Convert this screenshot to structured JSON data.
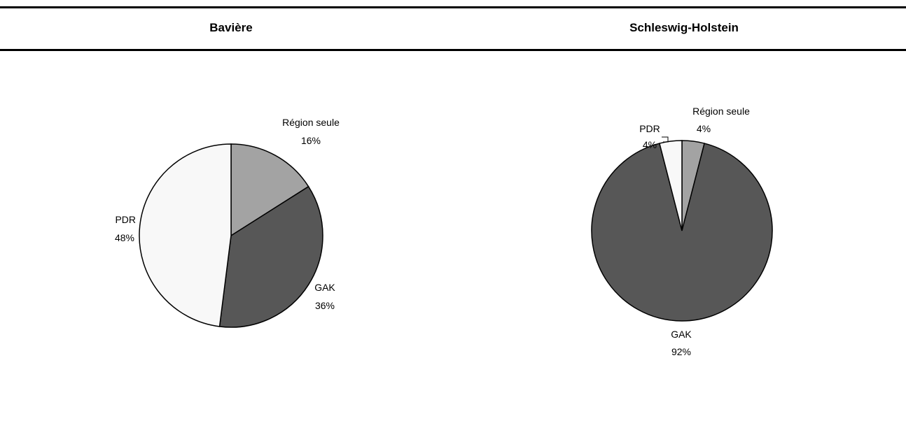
{
  "header": {
    "left_title": "Bavière",
    "right_title": "Schleswig-Holstein"
  },
  "colors": {
    "Région seule": "#a3a3a3",
    "GAK": "#575757",
    "PDR": "#f8f8f8",
    "outline": "#000000"
  },
  "chart_data": [
    {
      "type": "pie",
      "title": "Bavière",
      "slices": [
        {
          "label": "Région seule",
          "value": 16,
          "display": "16%"
        },
        {
          "label": "GAK",
          "value": 36,
          "display": "36%"
        },
        {
          "label": "PDR",
          "value": 48,
          "display": "48%"
        }
      ]
    },
    {
      "type": "pie",
      "title": "Schleswig-Holstein",
      "slices": [
        {
          "label": "Région seule",
          "value": 4,
          "display": "4%"
        },
        {
          "label": "GAK",
          "value": 92,
          "display": "92%"
        },
        {
          "label": "PDR",
          "value": 4,
          "display": "4%"
        }
      ]
    }
  ]
}
